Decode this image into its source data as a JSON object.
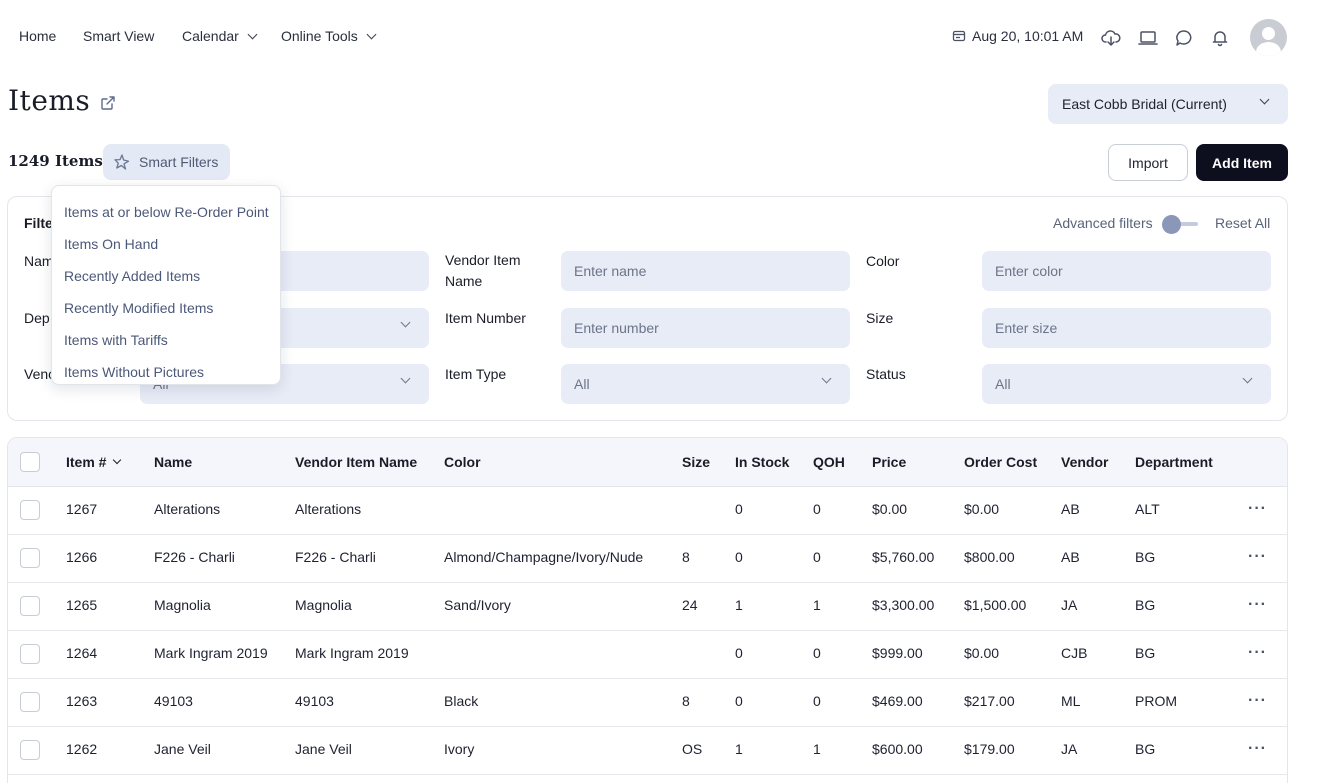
{
  "nav": {
    "home": "Home",
    "smart_view": "Smart View",
    "calendar": "Calendar",
    "online_tools": "Online Tools",
    "datetime": "Aug 20, 10:01 AM"
  },
  "header": {
    "title": "Items",
    "store": "East Cobb Bridal (Current)",
    "count": "1249 Items",
    "smart_filters": "Smart Filters",
    "import": "Import",
    "add_item": "Add Item"
  },
  "filters": {
    "title": "Filte",
    "advanced": "Advanced filters",
    "reset": "Reset All",
    "name_label": "Nam",
    "department_label": "Dep",
    "vendor_label": "Venc",
    "vendor_value": "All",
    "vendor_item_name_label": "Vendor Item Name",
    "vendor_item_name_placeholder": "Enter name",
    "item_number_label": "Item Number",
    "item_number_placeholder": "Enter number",
    "item_type_label": "Item Type",
    "item_type_value": "All",
    "color_label": "Color",
    "color_placeholder": "Enter color",
    "size_label": "Size",
    "size_placeholder": "Enter size",
    "status_label": "Status",
    "status_value": "All"
  },
  "smart_filter_menu": [
    "Items at or below Re-Order Point",
    "Items On Hand",
    "Recently Added Items",
    "Recently Modified Items",
    "Items with Tariffs",
    "Items Without Pictures"
  ],
  "table": {
    "headers": {
      "item_no": "Item #",
      "name": "Name",
      "vendor_item_name": "Vendor Item Name",
      "color": "Color",
      "size": "Size",
      "in_stock": "In Stock",
      "qoh": "QOH",
      "price": "Price",
      "order_cost": "Order Cost",
      "vendor": "Vendor",
      "department": "Department"
    },
    "rows": [
      {
        "item_no": "1267",
        "name": "Alterations",
        "vendor_item_name": "Alterations",
        "color": "",
        "size": "",
        "in_stock": "0",
        "qoh": "0",
        "price": "$0.00",
        "order_cost": "$0.00",
        "vendor": "AB",
        "department": "ALT"
      },
      {
        "item_no": "1266",
        "name": "F226 - Charli",
        "vendor_item_name": "F226 - Charli",
        "color": "Almond/Champagne/Ivory/Nude",
        "size": "8",
        "in_stock": "0",
        "qoh": "0",
        "price": "$5,760.00",
        "order_cost": "$800.00",
        "vendor": "AB",
        "department": "BG"
      },
      {
        "item_no": "1265",
        "name": "Magnolia",
        "vendor_item_name": "Magnolia",
        "color": "Sand/Ivory",
        "size": "24",
        "in_stock": "1",
        "qoh": "1",
        "price": "$3,300.00",
        "order_cost": "$1,500.00",
        "vendor": "JA",
        "department": "BG"
      },
      {
        "item_no": "1264",
        "name": "Mark Ingram 2019",
        "vendor_item_name": "Mark Ingram 2019",
        "color": "",
        "size": "",
        "in_stock": "0",
        "qoh": "0",
        "price": "$999.00",
        "order_cost": "$0.00",
        "vendor": "CJB",
        "department": "BG"
      },
      {
        "item_no": "1263",
        "name": "49103",
        "vendor_item_name": "49103",
        "color": "Black",
        "size": "8",
        "in_stock": "0",
        "qoh": "0",
        "price": "$469.00",
        "order_cost": "$217.00",
        "vendor": "ML",
        "department": "PROM"
      },
      {
        "item_no": "1262",
        "name": "Jane Veil",
        "vendor_item_name": "Jane Veil",
        "color": "Ivory",
        "size": "OS",
        "in_stock": "1",
        "qoh": "1",
        "price": "$600.00",
        "order_cost": "$179.00",
        "vendor": "JA",
        "department": "BG"
      }
    ]
  }
}
